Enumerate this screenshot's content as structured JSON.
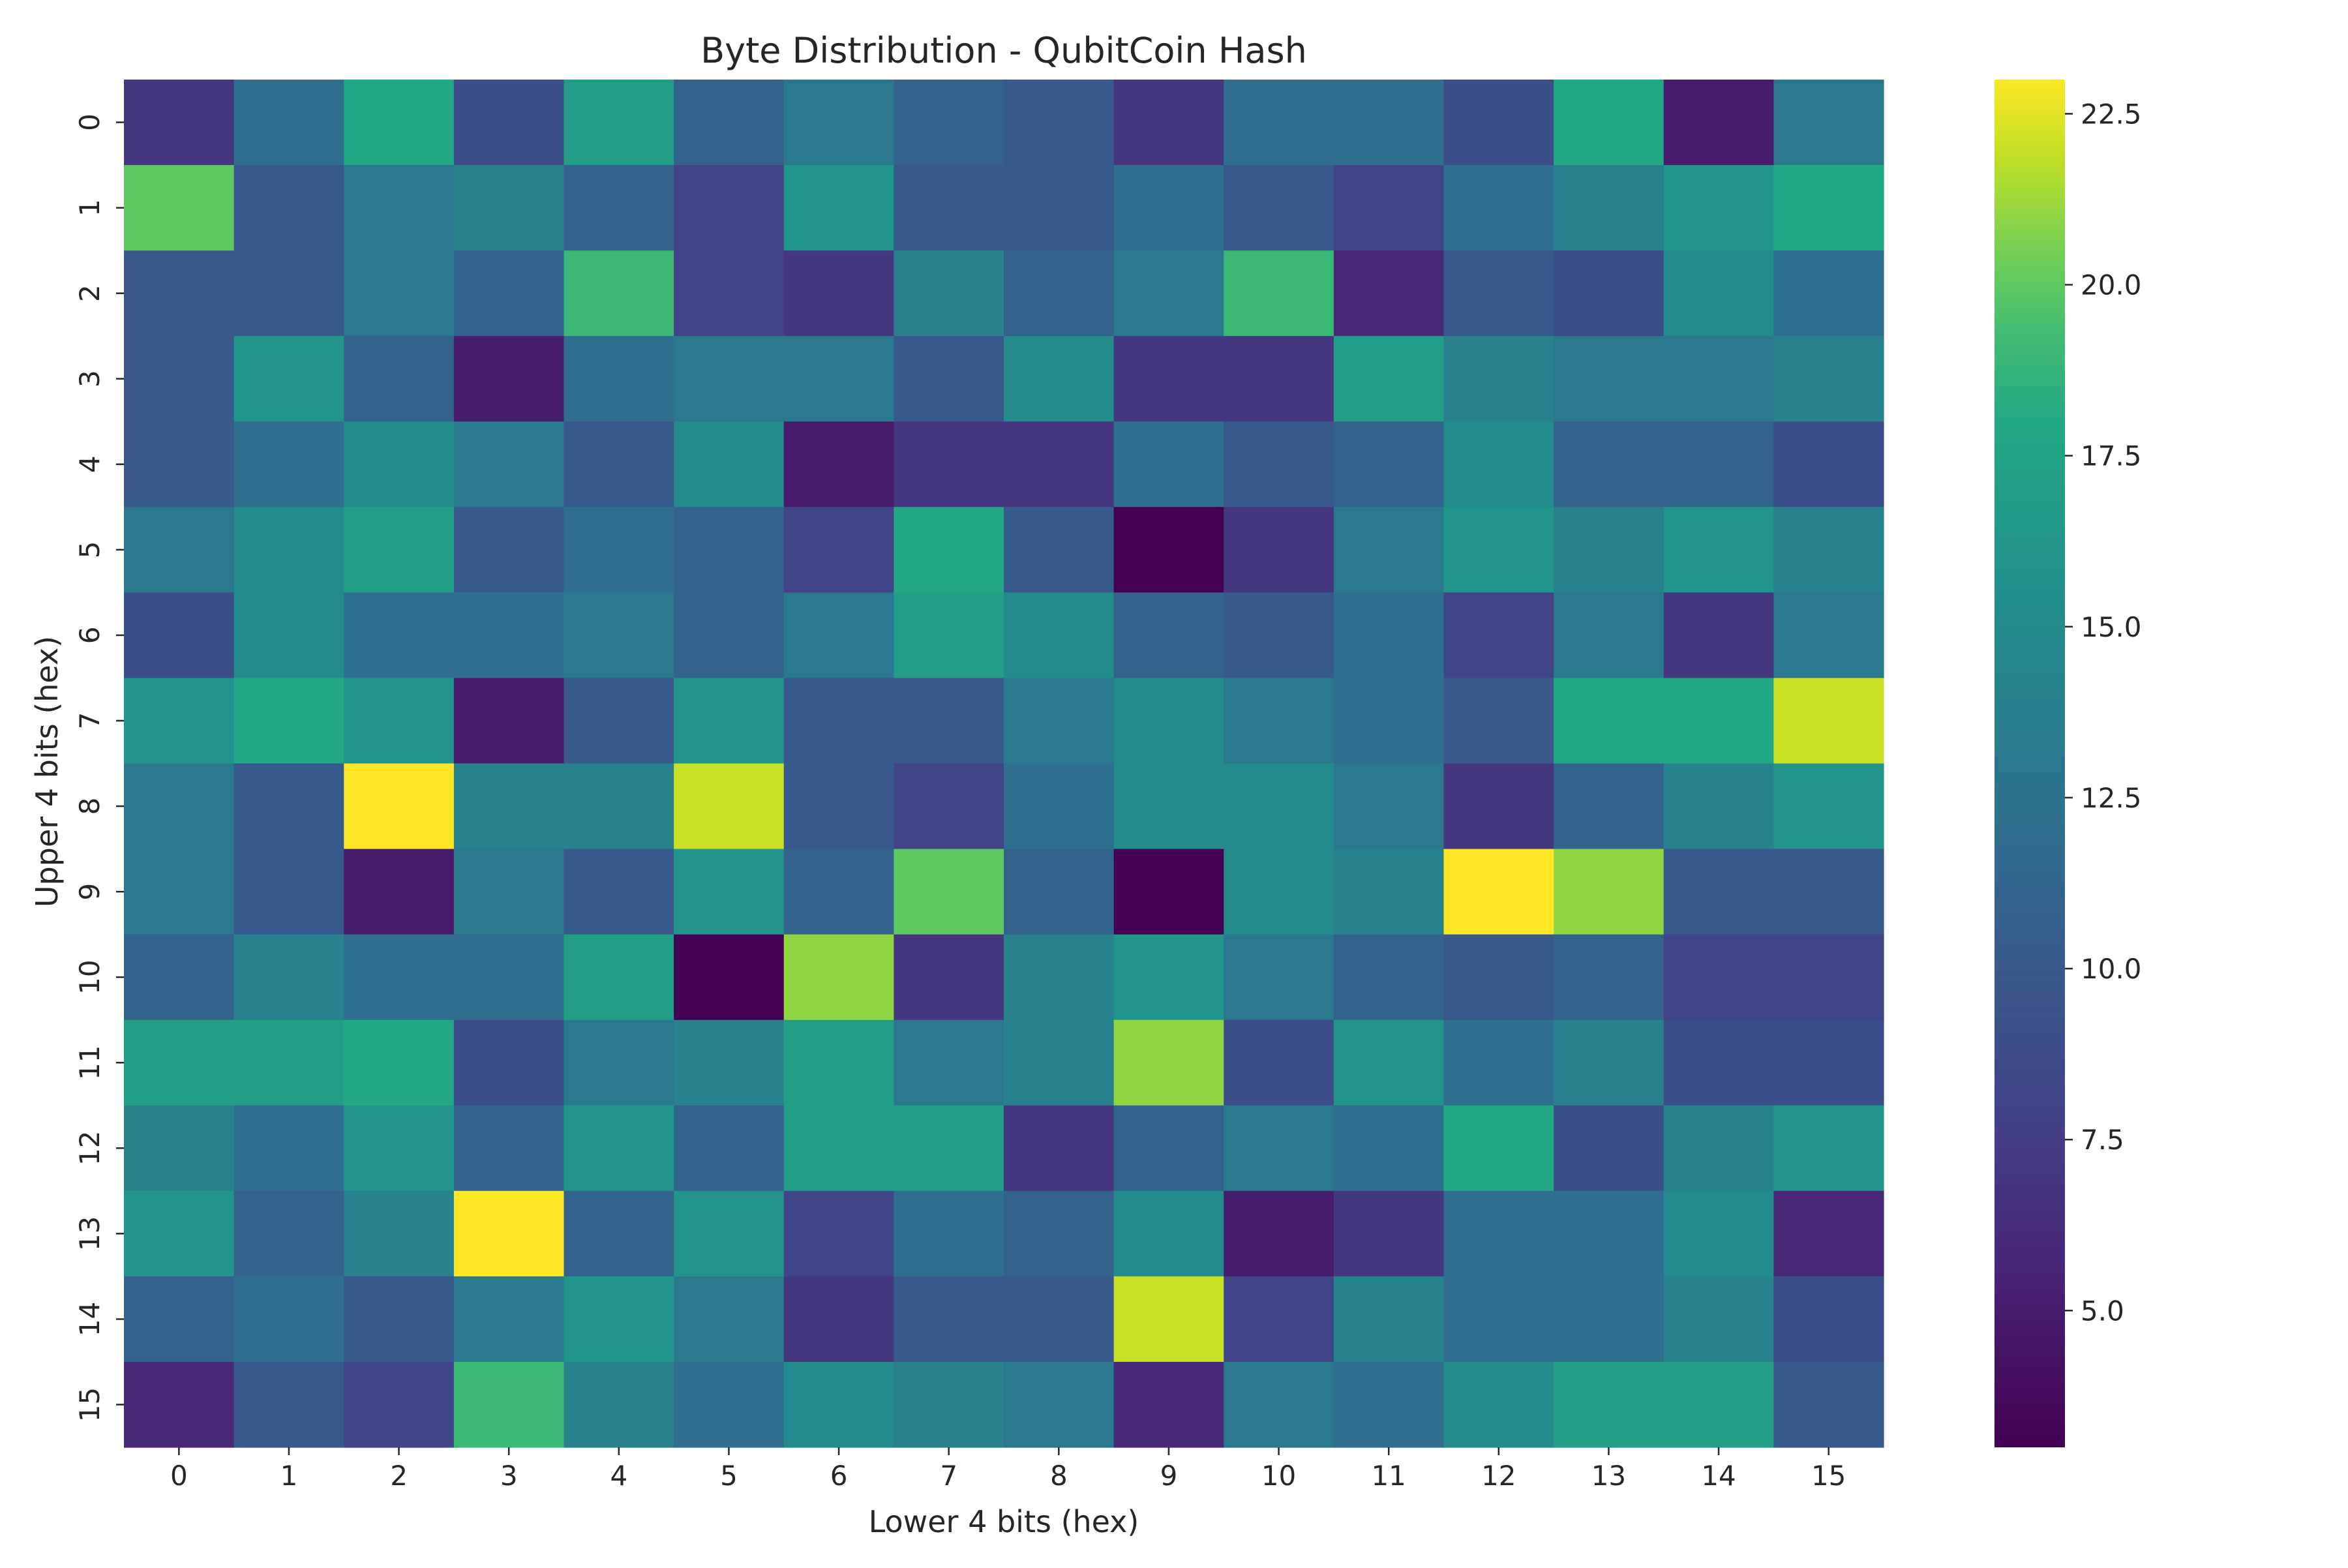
{
  "chart_data": {
    "type": "heatmap",
    "title": "Byte Distribution - QubitCoin Hash",
    "xlabel": "Lower 4 bits (hex)",
    "ylabel": "Upper 4 bits (hex)",
    "x_categories": [
      "0",
      "1",
      "2",
      "3",
      "4",
      "5",
      "6",
      "7",
      "8",
      "9",
      "10",
      "11",
      "12",
      "13",
      "14",
      "15"
    ],
    "y_categories": [
      "0",
      "1",
      "2",
      "3",
      "4",
      "5",
      "6",
      "7",
      "8",
      "9",
      "10",
      "11",
      "12",
      "13",
      "14",
      "15"
    ],
    "colormap": "viridis",
    "color_range": [
      3,
      23
    ],
    "colorbar_ticks": [
      "5.0",
      "7.5",
      "10.0",
      "12.5",
      "15.0",
      "17.5",
      "20.0",
      "22.5"
    ],
    "colorbar_tick_values": [
      5.0,
      7.5,
      10.0,
      12.5,
      15.0,
      17.5,
      20.0,
      22.5
    ],
    "values": [
      [
        7,
        12,
        18,
        9,
        17,
        11,
        13,
        11,
        10,
        7,
        12,
        12,
        9,
        18,
        5,
        13
      ],
      [
        20,
        10,
        13,
        14,
        11,
        8,
        16,
        10,
        10,
        12,
        10,
        8,
        12,
        14,
        16,
        18
      ],
      [
        10,
        10,
        13,
        11,
        19,
        8,
        7,
        14,
        11,
        13,
        19,
        6,
        10,
        9,
        15,
        12
      ],
      [
        10,
        16,
        11,
        5,
        12,
        13,
        13,
        10,
        15,
        7,
        7,
        17,
        14,
        13,
        13,
        14
      ],
      [
        10,
        12,
        15,
        13,
        10,
        15,
        5,
        7,
        7,
        12,
        10,
        11,
        15,
        11,
        11,
        9
      ],
      [
        13,
        15,
        17,
        10,
        12,
        11,
        8,
        18,
        10,
        3,
        7,
        13,
        16,
        14,
        16,
        14
      ],
      [
        9,
        15,
        12,
        12,
        13,
        11,
        13,
        17,
        15,
        11,
        10,
        12,
        8,
        13,
        7,
        13
      ],
      [
        16,
        18,
        16,
        5,
        10,
        16,
        10,
        10,
        13,
        15,
        13,
        12,
        10,
        18,
        18,
        22
      ],
      [
        13,
        10,
        23,
        14,
        14,
        22,
        10,
        8,
        12,
        15,
        15,
        13,
        7,
        11,
        14,
        16
      ],
      [
        13,
        10,
        5,
        13,
        10,
        16,
        11,
        20,
        11,
        3,
        15,
        14,
        23,
        21,
        10,
        10
      ],
      [
        11,
        14,
        12,
        12,
        17,
        2,
        21,
        7,
        14,
        16,
        13,
        11,
        10,
        11,
        8,
        8
      ],
      [
        17,
        17,
        18,
        9,
        13,
        14,
        17,
        13,
        14,
        21,
        9,
        16,
        12,
        14,
        9,
        9
      ],
      [
        14,
        12,
        16,
        11,
        16,
        11,
        17,
        17,
        7,
        11,
        13,
        12,
        18,
        9,
        14,
        16
      ],
      [
        16,
        11,
        14,
        23,
        11,
        16,
        8,
        12,
        11,
        15,
        5,
        7,
        12,
        12,
        15,
        6
      ],
      [
        11,
        12,
        10,
        13,
        16,
        13,
        7,
        10,
        10,
        22,
        8,
        14,
        12,
        12,
        14,
        9
      ],
      [
        6,
        10,
        8,
        19,
        14,
        12,
        15,
        14,
        13,
        6,
        13,
        12,
        15,
        17,
        17,
        10
      ]
    ]
  }
}
